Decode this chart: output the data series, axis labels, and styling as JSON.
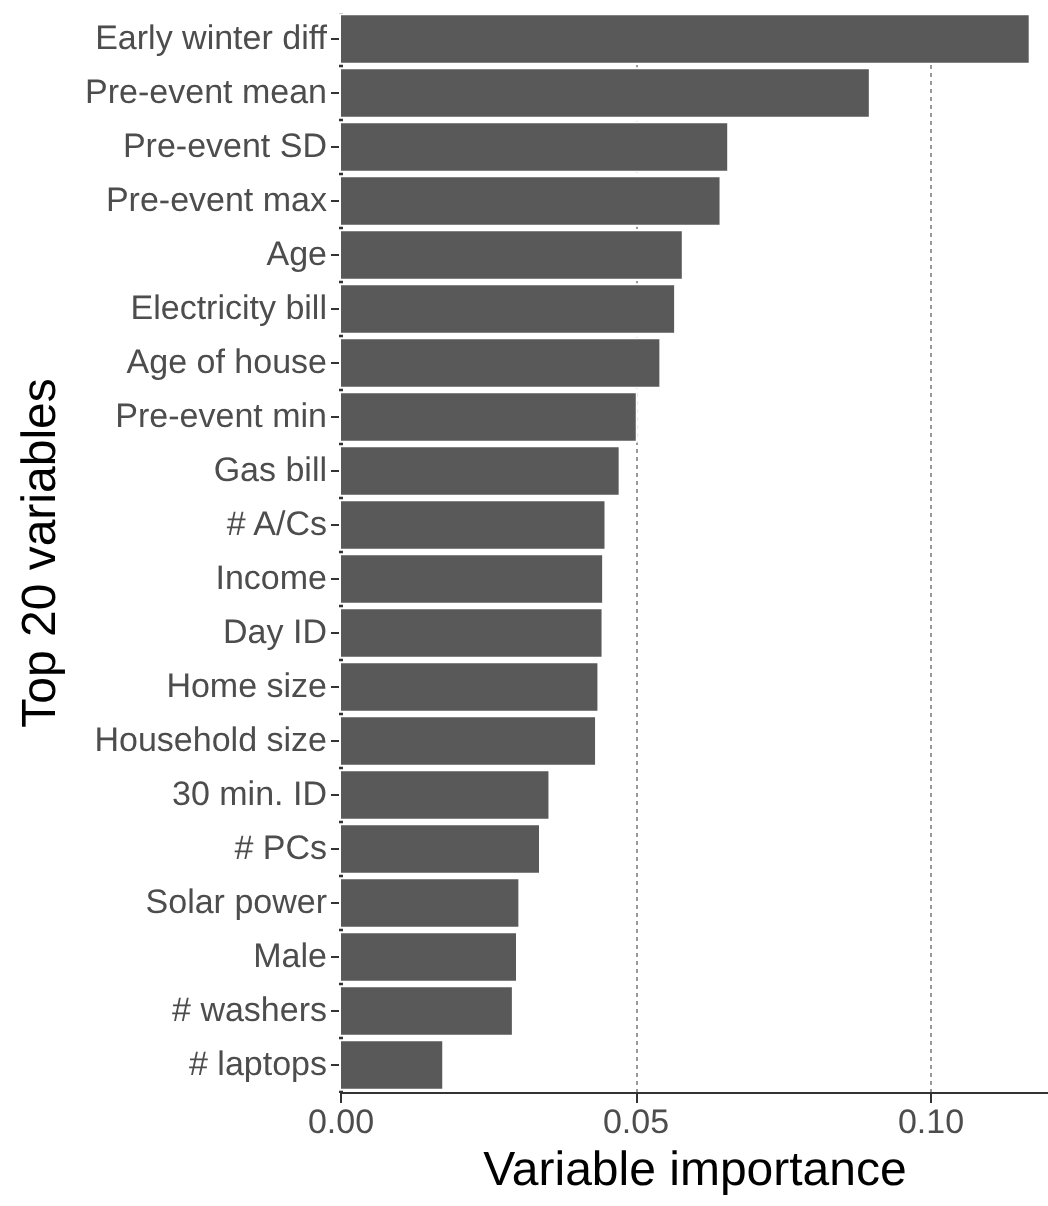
{
  "chart_data": {
    "type": "bar",
    "orientation": "horizontal",
    "xlabel": "Variable importance",
    "ylabel": "Top 20 variables",
    "categories": [
      "Early winter diff",
      "Pre-event mean",
      "Pre-event SD",
      "Pre-event max",
      "Age",
      "Electricity bill",
      "Age of house",
      "Pre-event min",
      "Gas bill",
      "# A/Cs",
      "Income",
      "Day ID",
      "Home size",
      "Household size",
      "30 min. ID",
      "# PCs",
      "Solar power",
      "Male",
      "# washers",
      "# laptops"
    ],
    "values": [
      0.1169,
      0.0898,
      0.0658,
      0.0645,
      0.0581,
      0.0568,
      0.0543,
      0.0503,
      0.0474,
      0.045,
      0.0446,
      0.0445,
      0.0438,
      0.0434,
      0.0355,
      0.0339,
      0.0304,
      0.03,
      0.0293,
      0.0175
    ],
    "color": "#595959",
    "xlim": [
      0,
      0.12
    ],
    "xticks": [
      {
        "value": 0,
        "label": "0.00"
      },
      {
        "value": 0.05,
        "label": "0.05"
      },
      {
        "value": 0.1,
        "label": "0.10"
      }
    ],
    "grid": "x"
  }
}
